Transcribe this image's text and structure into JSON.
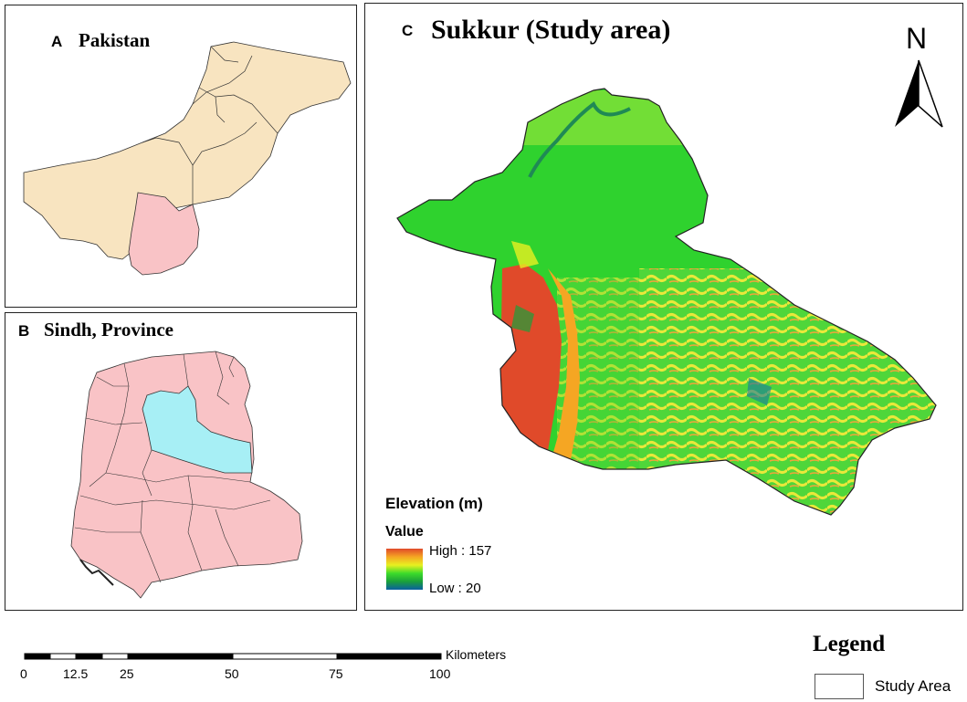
{
  "panels": {
    "a": {
      "letter": "A",
      "title": "Pakistan",
      "fill_country": "#f8e4c0",
      "fill_highlight": "#f9c3c6"
    },
    "b": {
      "letter": "B",
      "title": "Sindh, Province",
      "fill_province": "#f9c3c6",
      "fill_highlight": "#a7eff5"
    },
    "c": {
      "letter": "C",
      "title": "Sukkur (Study area)",
      "north_label": "N"
    }
  },
  "elevation_legend": {
    "title": "Elevation (m)",
    "value_label": "Value",
    "high_label": "High : 157",
    "low_label": "Low : 20",
    "ramp_colors": [
      "#e04a2a",
      "#f5a623",
      "#e8f020",
      "#3ddc2a",
      "#1aa03a",
      "#0a5fa0"
    ]
  },
  "scale_bar": {
    "unit": "Kilometers",
    "ticks": [
      "0",
      "12.5",
      "25",
      "50",
      "75",
      "100"
    ]
  },
  "map_legend": {
    "title": "Legend",
    "item_label": "Study Area"
  }
}
